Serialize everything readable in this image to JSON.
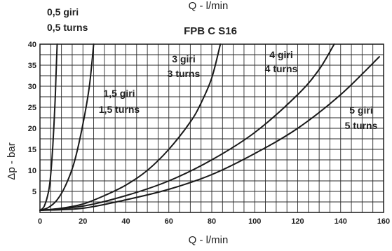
{
  "chart_data": {
    "type": "line",
    "title": "FPB C S16",
    "xlabel": "Q - l/min",
    "xlabel_top": "Q - l/min",
    "ylabel": "Δp - bar",
    "xlim": [
      0,
      160
    ],
    "ylim": [
      0,
      40
    ],
    "x_ticks": [
      "0",
      "20",
      "40",
      "60",
      "80",
      "100",
      "120",
      "140",
      "160"
    ],
    "y_ticks": [
      "5",
      "10",
      "15",
      "20",
      "25",
      "30",
      "35",
      "40"
    ],
    "grid": true,
    "line_color": "#1a1a1a",
    "series": [
      {
        "label_lines": [
          "0,5 giri",
          "0,5 turns"
        ],
        "x": [
          0,
          2,
          4,
          5,
          6,
          7,
          7.5,
          8
        ],
        "y": [
          0.5,
          1.5,
          5,
          9,
          16,
          26,
          33,
          40
        ]
      },
      {
        "label_lines": [
          "1,5 giri",
          "1,5 turns"
        ],
        "x": [
          0,
          4,
          8,
          12,
          16,
          20,
          23,
          25
        ],
        "y": [
          0.5,
          1.2,
          3,
          6.5,
          12,
          21,
          30,
          40
        ]
      },
      {
        "label_lines": [
          "3 giri",
          "3 turns"
        ],
        "x": [
          0,
          10,
          20,
          30,
          40,
          50,
          60,
          70,
          75,
          80,
          84
        ],
        "y": [
          0.5,
          1,
          2,
          4,
          6.5,
          10,
          15,
          21.5,
          26,
          32,
          40
        ]
      },
      {
        "label_lines": [
          "4 giri",
          "4 turns"
        ],
        "x": [
          0,
          20,
          40,
          60,
          80,
          100,
          120,
          130,
          137
        ],
        "y": [
          0.5,
          1.5,
          4,
          7.5,
          12.5,
          19,
          28,
          34,
          40
        ]
      },
      {
        "label_lines": [
          "5 giri",
          "5 turns"
        ],
        "x": [
          0,
          20,
          40,
          60,
          80,
          100,
          120,
          140,
          158
        ],
        "y": [
          0.5,
          1,
          3,
          5.5,
          9,
          14,
          20,
          28,
          37
        ]
      }
    ]
  }
}
